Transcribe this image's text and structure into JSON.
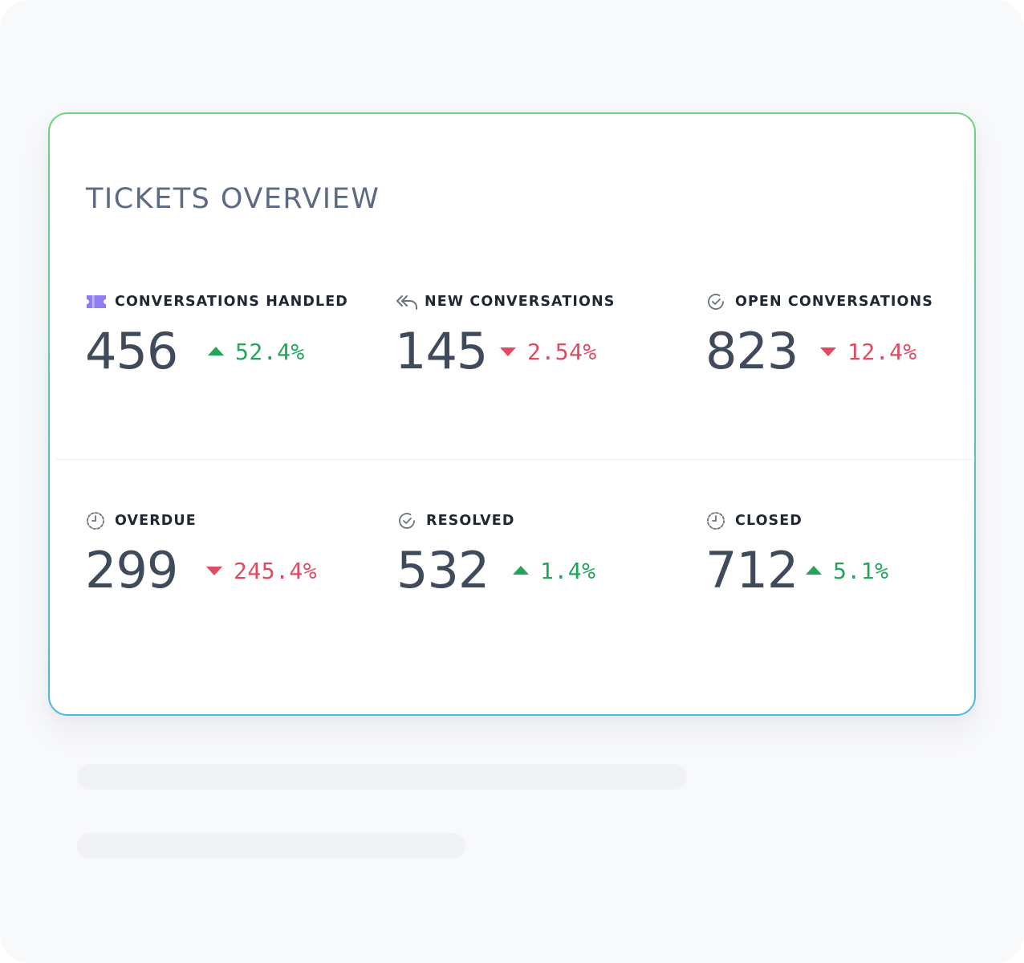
{
  "card": {
    "title": "TICKETS OVERVIEW"
  },
  "stats": [
    {
      "icon": "ticket-icon",
      "label": "CONVERSATIONS HANDLED",
      "value": "456",
      "direction": "up",
      "change": "52.4%"
    },
    {
      "icon": "reply-all-icon",
      "label": "NEW CONVERSATIONS",
      "value": "145",
      "direction": "down",
      "change": "2.54%"
    },
    {
      "icon": "check-circle-icon",
      "label": "OPEN CONVERSATIONS",
      "value": "823",
      "direction": "down",
      "change": "12.4%"
    },
    {
      "icon": "clock-icon",
      "label": "OVERDUE",
      "value": "299",
      "direction": "down",
      "change": "245.4%"
    },
    {
      "icon": "check-circle-icon",
      "label": "RESOLVED",
      "value": "532",
      "direction": "up",
      "change": "1.4%"
    },
    {
      "icon": "clock-icon",
      "label": "CLOSED",
      "value": "712",
      "direction": "up",
      "change": "5.1%"
    }
  ],
  "colors": {
    "up": "#23a559",
    "down": "#e14b62",
    "ticket_icon": "#8f7ef0"
  }
}
